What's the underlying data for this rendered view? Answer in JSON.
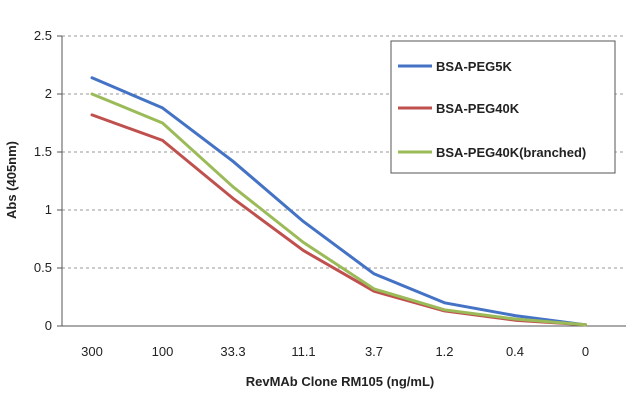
{
  "chart_data": {
    "type": "line",
    "title": "",
    "xlabel": "RevMAb Clone RM105 (ng/mL)",
    "ylabel": "Abs (405nm)",
    "categories": [
      "300",
      "100",
      "33.3",
      "11.1",
      "3.7",
      "1.2",
      "0.4",
      "0"
    ],
    "y_ticks": [
      "0",
      "0.5",
      "1",
      "1.5",
      "2",
      "2.5"
    ],
    "ylim": [
      0,
      2.5
    ],
    "grid": "horizontal dashed",
    "legend_position": "top-right",
    "series": [
      {
        "name": "BSA-PEG5K",
        "color": "#4472C4",
        "values": [
          2.14,
          1.88,
          1.42,
          0.9,
          0.45,
          0.2,
          0.09,
          0.01
        ]
      },
      {
        "name": "BSA-PEG40K",
        "color": "#C0504D",
        "values": [
          1.82,
          1.6,
          1.1,
          0.65,
          0.3,
          0.13,
          0.05,
          0.01
        ]
      },
      {
        "name": "BSA-PEG40K(branched)",
        "color": "#9BBB59",
        "values": [
          2.0,
          1.75,
          1.2,
          0.72,
          0.32,
          0.14,
          0.06,
          0.01
        ]
      }
    ]
  }
}
